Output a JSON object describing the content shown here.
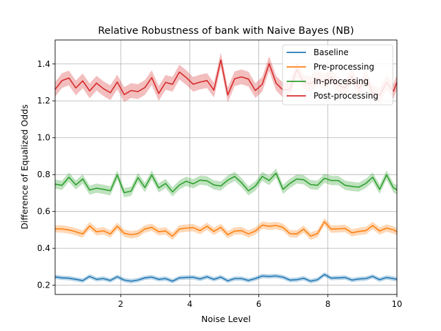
{
  "chart_data": {
    "type": "line",
    "title": "Relative Robustness of bank with Naive Bayes (NB)",
    "xlabel": "Noise Level",
    "ylabel": "Difference of Equalized Odds",
    "xlim": [
      0.1,
      10
    ],
    "ylim": [
      0.15,
      1.53
    ],
    "xticks": [
      2,
      4,
      6,
      8,
      10
    ],
    "yticks": [
      0.2,
      0.4,
      0.6,
      0.8,
      1.0,
      1.2,
      1.4
    ],
    "xtick_labels": [
      "2",
      "4",
      "6",
      "8",
      "10"
    ],
    "ytick_labels": [
      "0.2",
      "0.4",
      "0.6",
      "0.8",
      "1.0",
      "1.2",
      "1.4"
    ],
    "grid": true,
    "legend_position": "top-right",
    "x": [
      0.1,
      0.3,
      0.5,
      0.7,
      0.9,
      1.1,
      1.3,
      1.5,
      1.7,
      1.9,
      2.1,
      2.3,
      2.5,
      2.7,
      2.9,
      3.1,
      3.3,
      3.5,
      3.7,
      3.9,
      4.1,
      4.3,
      4.5,
      4.7,
      4.9,
      5.1,
      5.3,
      5.5,
      5.7,
      5.9,
      6.1,
      6.3,
      6.5,
      6.7,
      6.9,
      7.1,
      7.3,
      7.5,
      7.7,
      7.9,
      8.1,
      8.3,
      8.5,
      8.7,
      8.9,
      9.1,
      9.3,
      9.5,
      9.7,
      9.9,
      10.0
    ],
    "series": [
      {
        "name": "Baseline",
        "color": "#1f77b4",
        "values": [
          0.245,
          0.24,
          0.238,
          0.232,
          0.225,
          0.248,
          0.232,
          0.236,
          0.226,
          0.246,
          0.228,
          0.222,
          0.228,
          0.24,
          0.244,
          0.232,
          0.236,
          0.222,
          0.24,
          0.242,
          0.243,
          0.234,
          0.246,
          0.232,
          0.244,
          0.224,
          0.236,
          0.236,
          0.226,
          0.236,
          0.25,
          0.248,
          0.25,
          0.244,
          0.228,
          0.23,
          0.238,
          0.222,
          0.23,
          0.258,
          0.238,
          0.24,
          0.242,
          0.228,
          0.234,
          0.236,
          0.248,
          0.23,
          0.242,
          0.236,
          0.232
        ],
        "band": 0.012
      },
      {
        "name": "Pre-processing",
        "color": "#ff7f0e",
        "values": [
          0.506,
          0.505,
          0.5,
          0.49,
          0.478,
          0.522,
          0.49,
          0.495,
          0.478,
          0.52,
          0.482,
          0.474,
          0.48,
          0.505,
          0.514,
          0.49,
          0.494,
          0.466,
          0.505,
          0.51,
          0.512,
          0.496,
          0.52,
          0.492,
          0.514,
          0.474,
          0.494,
          0.496,
          0.478,
          0.494,
          0.526,
          0.52,
          0.524,
          0.514,
          0.48,
          0.478,
          0.504,
          0.466,
          0.48,
          0.544,
          0.504,
          0.506,
          0.508,
          0.484,
          0.492,
          0.496,
          0.524,
          0.494,
          0.51,
          0.5,
          0.49
        ],
        "band": 0.02
      },
      {
        "name": "In-processing",
        "color": "#2ca02c",
        "values": [
          0.748,
          0.742,
          0.786,
          0.744,
          0.776,
          0.716,
          0.726,
          0.72,
          0.712,
          0.798,
          0.702,
          0.71,
          0.784,
          0.73,
          0.798,
          0.728,
          0.752,
          0.706,
          0.744,
          0.764,
          0.75,
          0.77,
          0.766,
          0.744,
          0.738,
          0.77,
          0.79,
          0.756,
          0.712,
          0.738,
          0.79,
          0.768,
          0.808,
          0.72,
          0.752,
          0.776,
          0.772,
          0.746,
          0.742,
          0.78,
          0.768,
          0.768,
          0.742,
          0.736,
          0.732,
          0.752,
          0.786,
          0.72,
          0.798,
          0.728,
          0.718
        ],
        "band": 0.025
      },
      {
        "name": "Post-processing",
        "color": "#d62728",
        "values": [
          1.262,
          1.31,
          1.324,
          1.27,
          1.308,
          1.254,
          1.296,
          1.266,
          1.244,
          1.302,
          1.234,
          1.256,
          1.25,
          1.272,
          1.326,
          1.24,
          1.3,
          1.29,
          1.356,
          1.326,
          1.29,
          1.302,
          1.31,
          1.258,
          1.422,
          1.232,
          1.32,
          1.33,
          1.318,
          1.256,
          1.29,
          1.402,
          1.296,
          1.258,
          1.262,
          1.37,
          1.302,
          1.292,
          1.324,
          1.304,
          1.33,
          1.286,
          1.27,
          1.334,
          1.268,
          1.324,
          1.244,
          1.23,
          1.3,
          1.252,
          1.3
        ],
        "band": 0.04
      }
    ]
  }
}
